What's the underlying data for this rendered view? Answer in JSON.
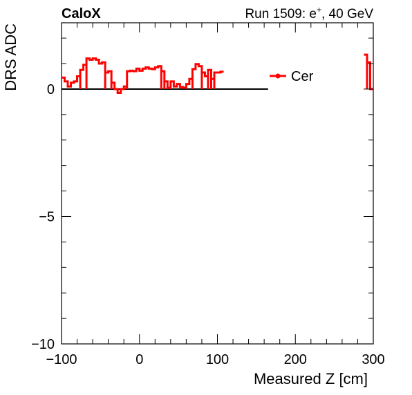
{
  "header": {
    "brand": "CaloX",
    "run_prefix": "Run 1509: e",
    "run_sup": "+",
    "run_suffix": ", 40 GeV"
  },
  "chart_data": {
    "type": "line",
    "title": "",
    "xlabel": "Measured Z [cm]",
    "ylabel": "DRS ADC",
    "xlim": [
      -100,
      300
    ],
    "ylim": [
      -10,
      2.6
    ],
    "xticks": [
      -100,
      0,
      100,
      200,
      300
    ],
    "xtick_labels": [
      "−100",
      "0",
      "100",
      "200",
      "300"
    ],
    "yticks": [
      -10,
      -5,
      0
    ],
    "ytick_labels": [
      "−10",
      "−5",
      "0"
    ],
    "grid": false,
    "legend_position": "top-right",
    "series": [
      {
        "name": "Cer",
        "color": "#ff0000",
        "style": "step",
        "bin_width": 4,
        "segments": [
          {
            "x_start": -100,
            "values": [
              0.45,
              0.3,
              0.1,
              0.25,
              0.3,
              0.5,
              0.75,
              0.95,
              1.2,
              1.15,
              1.2,
              1.15,
              1.0,
              1.05,
              0.65,
              0.7,
              0.25,
              0.0,
              -0.15,
              0.0,
              0.1,
              0.7,
              0.72,
              0.7,
              0.8,
              0.72,
              0.8,
              0.85,
              0.8,
              0.78,
              0.85,
              0.9,
              0.7,
              0.3,
              0.05,
              0.3,
              0.1,
              0.2,
              0.08,
              0.05,
              0.2,
              0.4,
              0.78,
              0.98,
              0.9,
              0.65,
              0.5,
              0.75,
              0.4,
              0.65,
              0.65,
              0.68
            ]
          },
          {
            "x_start": 288,
            "values": [
              1.35,
              1.05,
              0.0
            ]
          }
        ]
      }
    ]
  }
}
